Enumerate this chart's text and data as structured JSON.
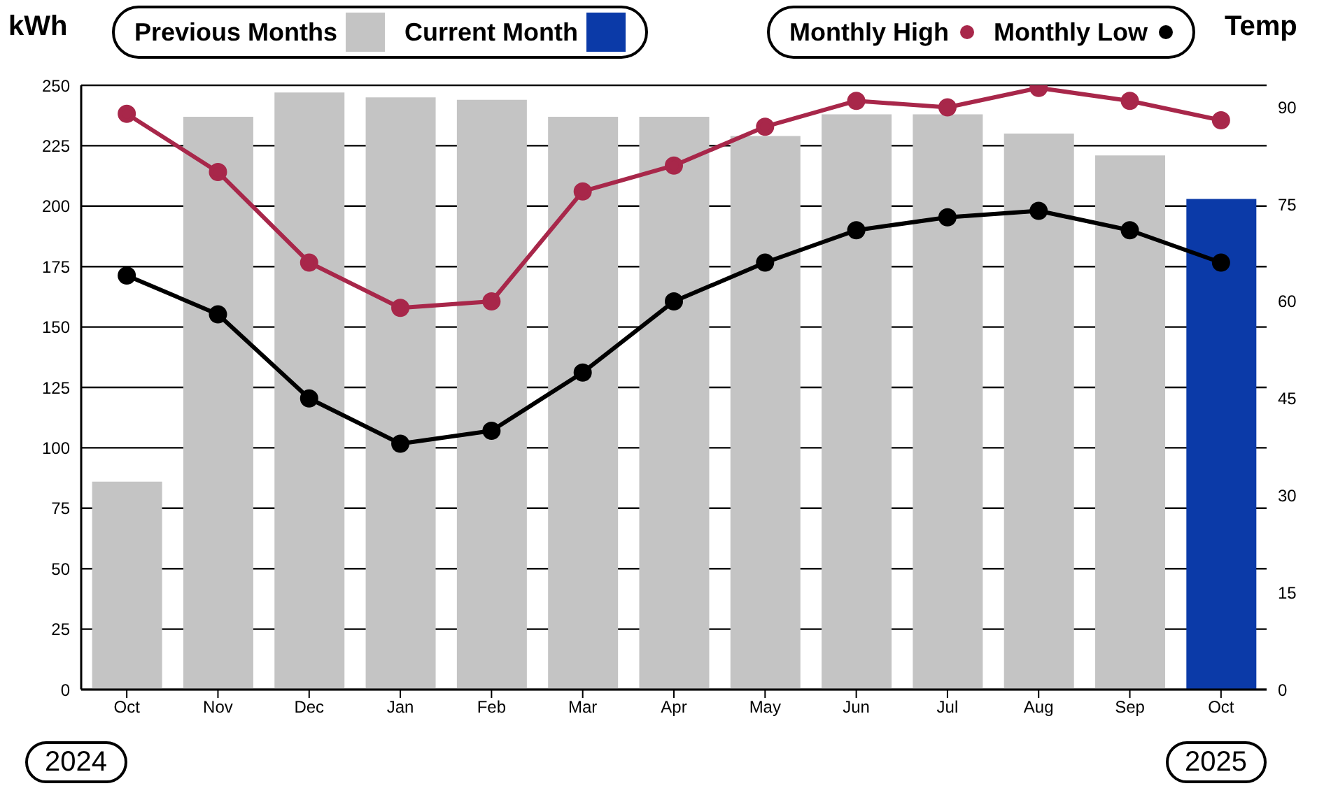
{
  "chart_data": {
    "type": "bar",
    "ylabel": "kWh",
    "y2label": "Temp",
    "categories": [
      "Oct",
      "Nov",
      "Dec",
      "Jan",
      "Feb",
      "Mar",
      "Apr",
      "May",
      "Jun",
      "Jul",
      "Aug",
      "Sep",
      "Oct"
    ],
    "series": [
      {
        "name": "Previous Months",
        "color": "#c4c4c4",
        "values": [
          86,
          237,
          247,
          245,
          244,
          237,
          237,
          229,
          238,
          238,
          230,
          221,
          null
        ]
      },
      {
        "name": "Current Month",
        "color": "#0b3aa8",
        "values": [
          null,
          null,
          null,
          null,
          null,
          null,
          null,
          null,
          null,
          null,
          null,
          null,
          203
        ]
      },
      {
        "name": "Monthly High",
        "type": "line",
        "axis": "y2",
        "color": "#a8274a",
        "values": [
          89,
          80,
          66,
          59,
          60,
          77,
          81,
          87,
          91,
          90,
          93,
          91,
          88
        ]
      },
      {
        "name": "Monthly Low",
        "type": "line",
        "axis": "y2",
        "color": "#000000",
        "values": [
          64,
          58,
          45,
          38,
          40,
          49,
          60,
          66,
          71,
          73,
          74,
          71,
          66
        ]
      }
    ],
    "stacked": true,
    "ylim": [
      0,
      250
    ],
    "yticks": [
      0,
      25,
      50,
      75,
      100,
      125,
      150,
      175,
      200,
      225,
      250
    ],
    "y2lim": [
      0,
      93.4
    ],
    "y2ticks": [
      0,
      15,
      30,
      45,
      60,
      75,
      90
    ],
    "grid": "y",
    "legend": "top",
    "marker": "circle",
    "line_style": "solid",
    "annotations": [
      "2024",
      "2025"
    ]
  }
}
